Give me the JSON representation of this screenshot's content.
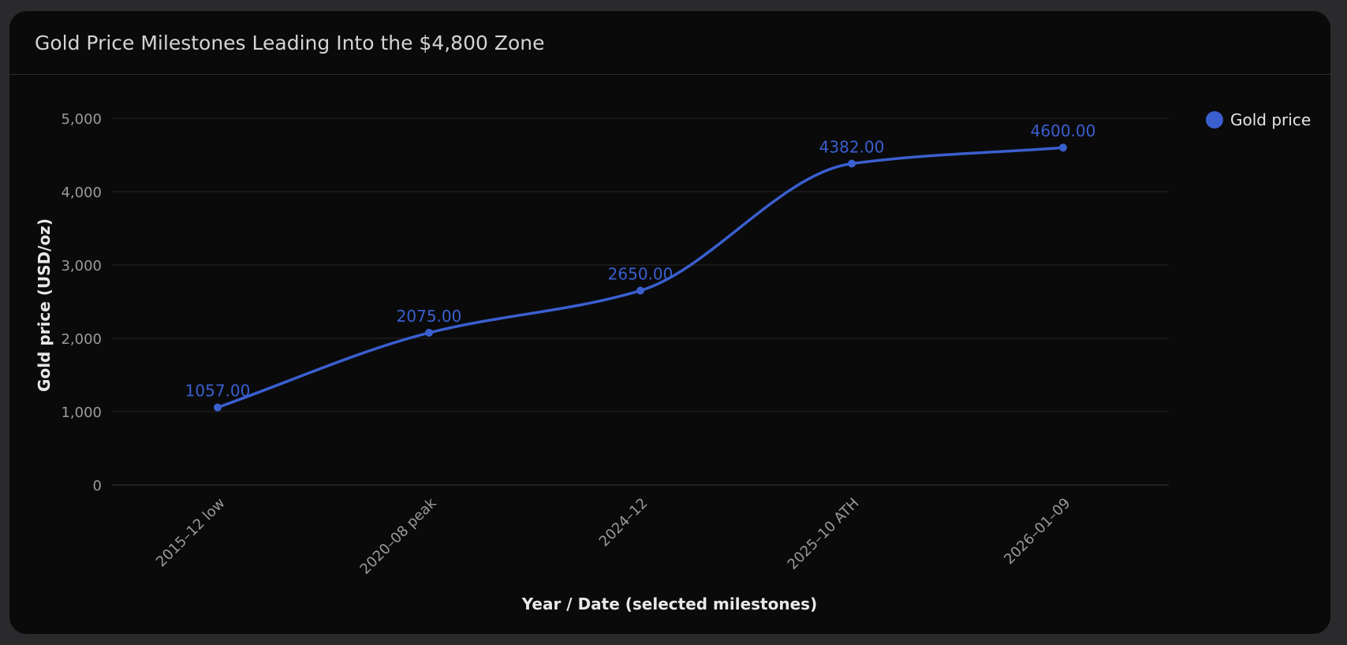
{
  "title": "Gold Price Milestones Leading Into the $4,800 Zone",
  "colors": {
    "series": "#3a5fcf",
    "grid": "#262626",
    "background": "#0a0a0a"
  },
  "chart_data": {
    "type": "line",
    "title": "Gold Price Milestones Leading Into the $4,800 Zone",
    "categories": [
      "2015–12 low",
      "2020–08 peak",
      "2024–12",
      "2025–10 ATH",
      "2026–01–09"
    ],
    "series": [
      {
        "name": "Gold price",
        "values": [
          1057.0,
          2075.0,
          2650.0,
          4382.0,
          4600.0
        ],
        "labels": [
          "1057.00",
          "2075.00",
          "2650.00",
          "4382.00",
          "4600.00"
        ]
      }
    ],
    "xlabel": "Year / Date (selected milestones)",
    "ylabel": "Gold price (USD/oz)",
    "ylim": [
      0,
      5000
    ],
    "yticks": [
      0,
      1000,
      2000,
      3000,
      4000,
      5000
    ],
    "ytick_labels": [
      "0",
      "1,000",
      "2,000",
      "3,000",
      "4,000",
      "5,000"
    ],
    "grid": true,
    "smooth": true,
    "legend": "top-right"
  }
}
